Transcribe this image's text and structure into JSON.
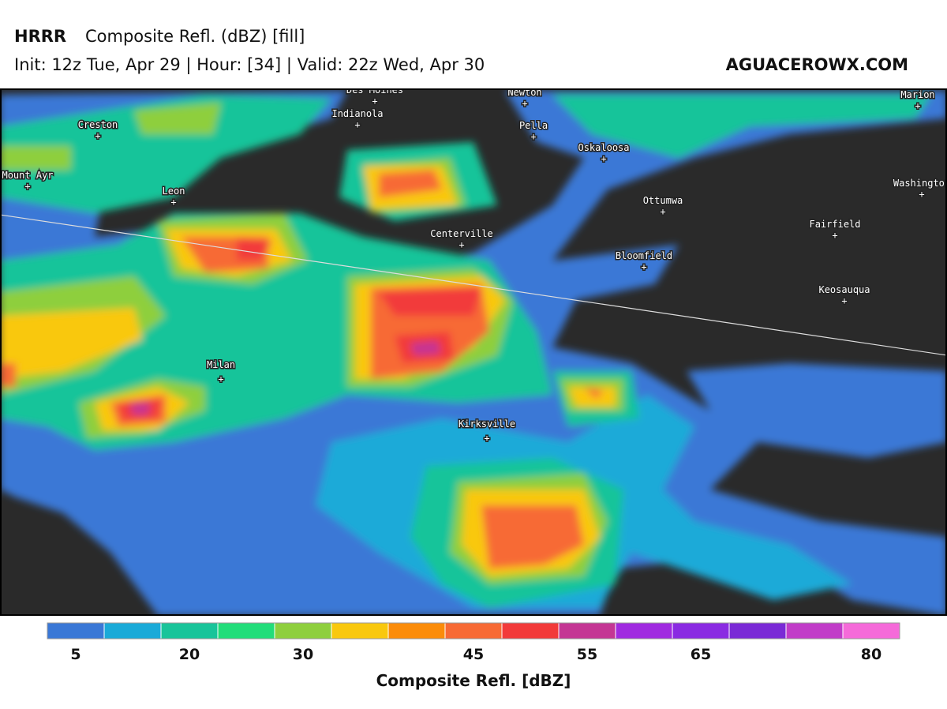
{
  "header": {
    "model": "HRRR",
    "product": "Composite Refl. (dBZ) [fill]",
    "run": "Init: 12z Tue, Apr 29 | Hour: [34] | Valid: 22z Wed, Apr 30",
    "site": "AGUACEROWX.COM"
  },
  "map": {
    "places": [
      "Des Moines",
      "Newton",
      "Marion",
      "Indianola",
      "Creston",
      "Pella",
      "Oskaloosa",
      "Mount Ayr",
      "Leon",
      "Washington",
      "Ottumwa",
      "Fairfield",
      "Centerville",
      "Bloomfield",
      "Keosauqua",
      "Milan",
      "Kirksville"
    ]
  },
  "legend": {
    "colors": [
      "#3a78d6",
      "#1aaad8",
      "#18c49a",
      "#22dd7a",
      "#8ecf3e",
      "#f9c80e",
      "#fb8c0a",
      "#f76a35",
      "#f23a3a",
      "#c43694",
      "#a02be0",
      "#8a2be2",
      "#7a2ad6",
      "#c13cc8",
      "#f56ad9"
    ],
    "ticks": [
      5,
      20,
      30,
      45,
      55,
      65,
      80
    ],
    "label": "Composite Refl. [dBZ]"
  }
}
